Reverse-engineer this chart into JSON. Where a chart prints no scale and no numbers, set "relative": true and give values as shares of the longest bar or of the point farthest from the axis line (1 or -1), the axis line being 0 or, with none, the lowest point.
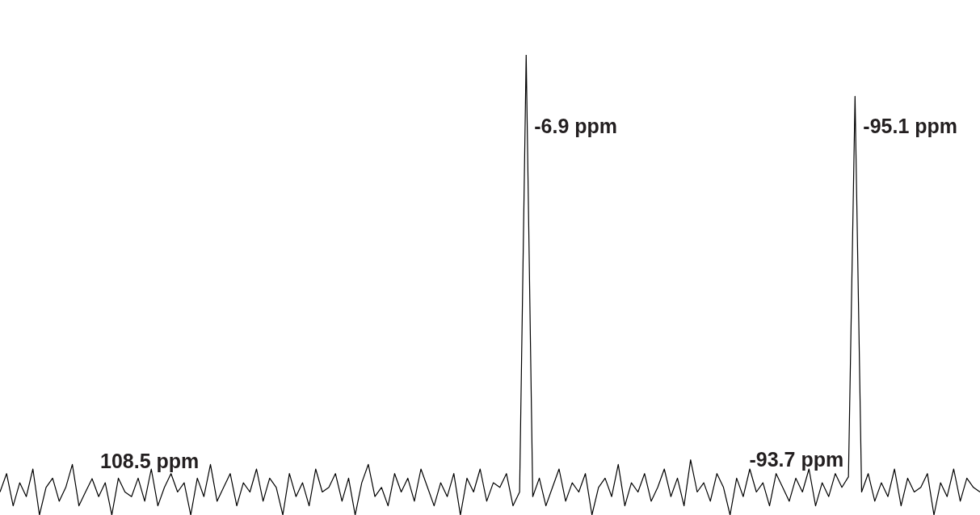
{
  "chart_data": {
    "type": "line",
    "relative": true,
    "tick_labels": false,
    "legend": false,
    "marker": "none",
    "categories": [
      null,
      null,
      null,
      null,
      null,
      null,
      null,
      null,
      null,
      null,
      null,
      null,
      null,
      null,
      null,
      null,
      null,
      null,
      null,
      null,
      null,
      null,
      null,
      null,
      null,
      null,
      null,
      null,
      null,
      null,
      null,
      null,
      null,
      null,
      null,
      null,
      null,
      null,
      null,
      null,
      null,
      null,
      null,
      null,
      null,
      null,
      null,
      null,
      null,
      null,
      null,
      null,
      null,
      null,
      null,
      null,
      null,
      null,
      null,
      null,
      null,
      null,
      null,
      null,
      null,
      null,
      null,
      null,
      null,
      null,
      null,
      null,
      null,
      null,
      null,
      null,
      null,
      null,
      null,
      null,
      null,
      null,
      null,
      null,
      null,
      null,
      null,
      null,
      null,
      null,
      null,
      null,
      null,
      null,
      null,
      null,
      null,
      null,
      null,
      null,
      null,
      null,
      null,
      null,
      null,
      null,
      null,
      null,
      null,
      null,
      null,
      null,
      null,
      null,
      null,
      null,
      null,
      null,
      null,
      null,
      null,
      null,
      null,
      null,
      null,
      null,
      null,
      null,
      null,
      null,
      null,
      null,
      null,
      null,
      null,
      null,
      null,
      null,
      null,
      null,
      null,
      null,
      null,
      null,
      null,
      null,
      null,
      null,
      null,
      null
    ],
    "series": [
      {
        "color": "#000000",
        "values": [
          0.05,
          0.09,
          0.02,
          0.07,
          0.04,
          0.1,
          0,
          0.06,
          0.08,
          0.03,
          0.06,
          0.11,
          0.02,
          0.05,
          0.079,
          0.04,
          0.07,
          0,
          0.08,
          0.05,
          0.04,
          0.08,
          0.03,
          0.1,
          0.02,
          0.06,
          0.09,
          0.05,
          0.07,
          0,
          0.08,
          0.04,
          0.11,
          0.03,
          0.06,
          0.09,
          0.02,
          0.07,
          0.05,
          0.1,
          0.03,
          0.08,
          0.06,
          0,
          0.09,
          0.04,
          0.07,
          0.02,
          0.1,
          0.05,
          0.06,
          0.09,
          0.03,
          0.08,
          0,
          0.07,
          0.11,
          0.04,
          0.06,
          0.02,
          0.09,
          0.05,
          0.08,
          0.03,
          0.1,
          0.06,
          0.02,
          0.07,
          0.04,
          0.09,
          0,
          0.08,
          0.05,
          0.1,
          0.03,
          0.07,
          0.06,
          0.09,
          0.02,
          0.05,
          1,
          0.04,
          0.08,
          0.02,
          0.06,
          0.1,
          0.03,
          0.07,
          0.05,
          0.09,
          0,
          0.06,
          0.08,
          0.04,
          0.11,
          0.02,
          0.07,
          0.05,
          0.09,
          0.03,
          0.06,
          0.1,
          0.04,
          0.08,
          0.02,
          0.12,
          0.05,
          0.07,
          0.03,
          0.09,
          0.06,
          0,
          0.08,
          0.04,
          0.1,
          0.05,
          0.07,
          0.02,
          0.09,
          0.06,
          0.03,
          0.08,
          0.05,
          0.1,
          0.02,
          0.07,
          0.04,
          0.09,
          0.06,
          0.083,
          0.91,
          0.05,
          0.09,
          0.03,
          0.07,
          0.04,
          0.1,
          0.02,
          0.08,
          0.05,
          0.06,
          0.09,
          0,
          0.07,
          0.04,
          0.1,
          0.03,
          0.08,
          0.06,
          0.05
        ]
      }
    ],
    "annotations": [
      {
        "text": "108.5 ppm",
        "y": 0.079
      },
      "-6.9 ppm",
      {
        "text": "-93.7 ppm",
        "y": 0.083
      },
      "-95.1 ppm"
    ]
  }
}
